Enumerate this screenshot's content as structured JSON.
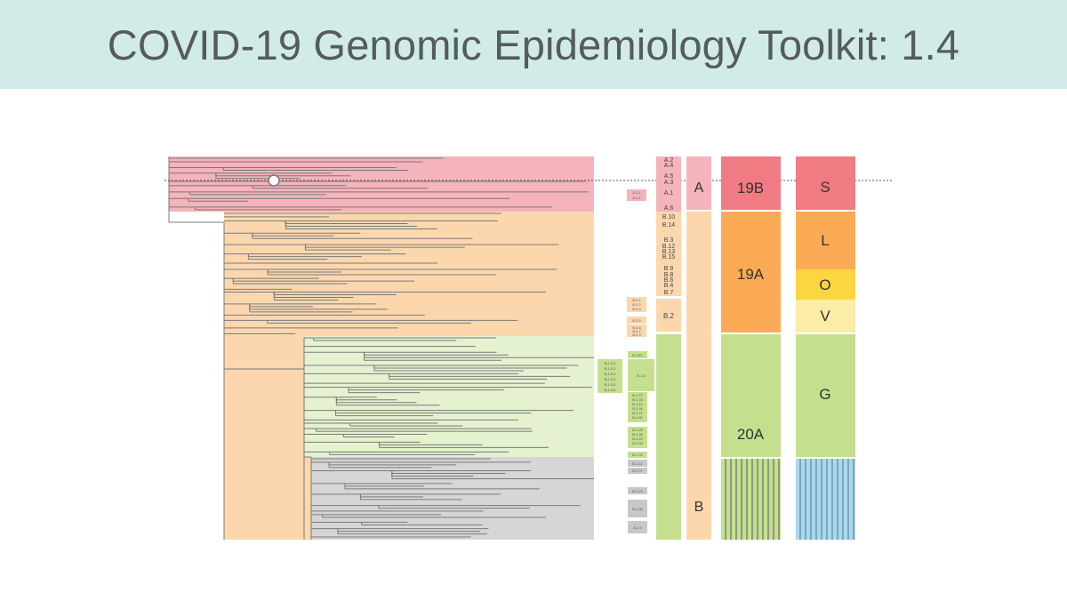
{
  "title": "COVID-19 Genomic Epidemiology Toolkit: 1.4",
  "lineage_labels": {
    "top": [
      "A.2",
      "A.4",
      "A.5",
      "A.3",
      "A.1",
      "A.6",
      "B.10",
      "B.14",
      "B.3",
      "B.12",
      "B.13",
      "B.15",
      "B.9",
      "B.8",
      "B.6",
      "B.4",
      "B.7",
      "B.2"
    ],
    "small_pink": [
      "A.1.1",
      "A.1.1"
    ],
    "small_orange": [
      "B.2.1",
      "B.2.2",
      "B.2.4",
      "B.2.5",
      "B.2.6",
      "B.2.7",
      "B.2.3"
    ],
    "small_green": [
      "B.1.5.1",
      "B.1.5.2",
      "B.1.5.3",
      "B.1.5.4",
      "B.1.5.5",
      "B.1.5.6",
      "B.1.67",
      "B.1.8",
      "B.1.72",
      "B.1.78",
      "B.1.14",
      "B.1.34",
      "B.1.71",
      "B.1.80",
      "B.1.28",
      "B.1.26",
      "B.1.22",
      "B.1.35",
      "B.1.70"
    ],
    "small_grey": [
      "B.1.12",
      "B.1.37",
      "B.1.23",
      "B.1.36",
      "B.1.9"
    ]
  },
  "lineage_bar": {
    "a_label": "A",
    "b_label": "B"
  },
  "nextstrain_clades": {
    "clade_19b": "19B",
    "clade_19a": "19A",
    "clade_20a": "20A"
  },
  "gisaid_clades": {
    "s": "S",
    "l": "L",
    "o": "O",
    "v": "V",
    "g": "G"
  },
  "colors": {
    "banner": "#d1ece8",
    "title_text": "#555b5e",
    "pink": "#f5b3bb",
    "pink_strong": "#f07b82",
    "orange_light": "#fcd7ae",
    "orange_strong": "#fbaa55",
    "yellow": "#fbd640",
    "yellow_light": "#fbeca8",
    "green_light": "#e4f2cf",
    "green_strong": "#c4e08f",
    "grey": "#d6d6d6",
    "blue": "#a8d7ee",
    "branch": "#7a7a7a"
  },
  "icons": {
    "root_marker": "circle-marker-icon"
  }
}
